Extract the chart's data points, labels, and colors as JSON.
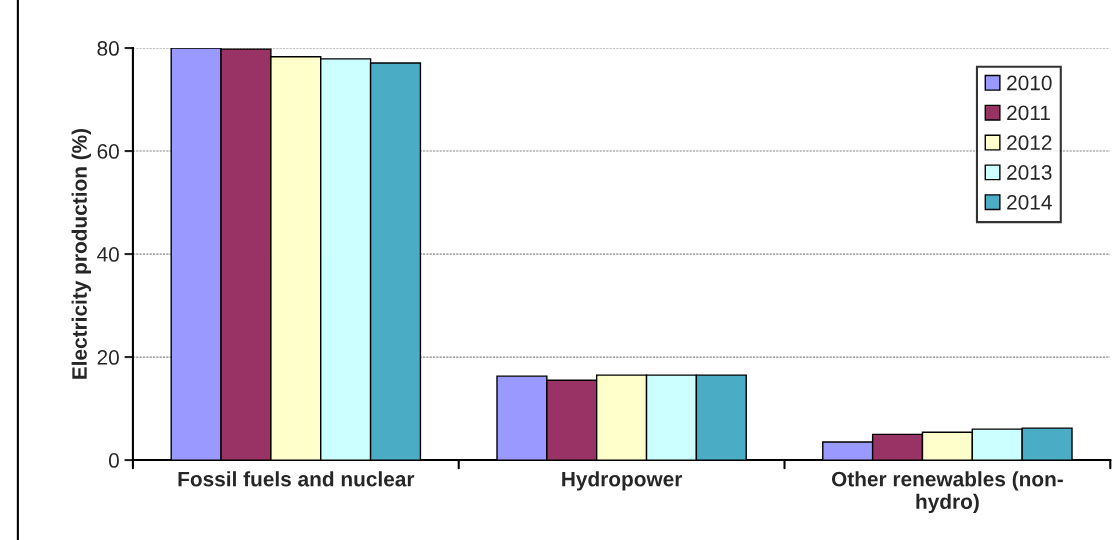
{
  "chart_data": {
    "type": "bar",
    "ylabel": "Electricity production (%)",
    "categories": [
      "Fossil fuels and nuclear",
      "Hydropower",
      "Other renewables (non-\nhydro)"
    ],
    "series": [
      {
        "name": "2010",
        "color": "#9999ff",
        "values": [
          80,
          16.3,
          3.5
        ]
      },
      {
        "name": "2011",
        "color": "#993366",
        "values": [
          79.8,
          15.5,
          5.0
        ]
      },
      {
        "name": "2012",
        "color": "#ffffcc",
        "values": [
          78.3,
          16.5,
          5.4
        ]
      },
      {
        "name": "2013",
        "color": "#ccffff",
        "values": [
          77.9,
          16.5,
          6.0
        ]
      },
      {
        "name": "2014",
        "color": "#4bacc6",
        "values": [
          77.1,
          16.5,
          6.2
        ]
      }
    ],
    "ylim": [
      0,
      80
    ],
    "yticks": [
      0,
      20,
      40,
      60,
      80
    ],
    "grid": "y",
    "legend": "top right"
  }
}
